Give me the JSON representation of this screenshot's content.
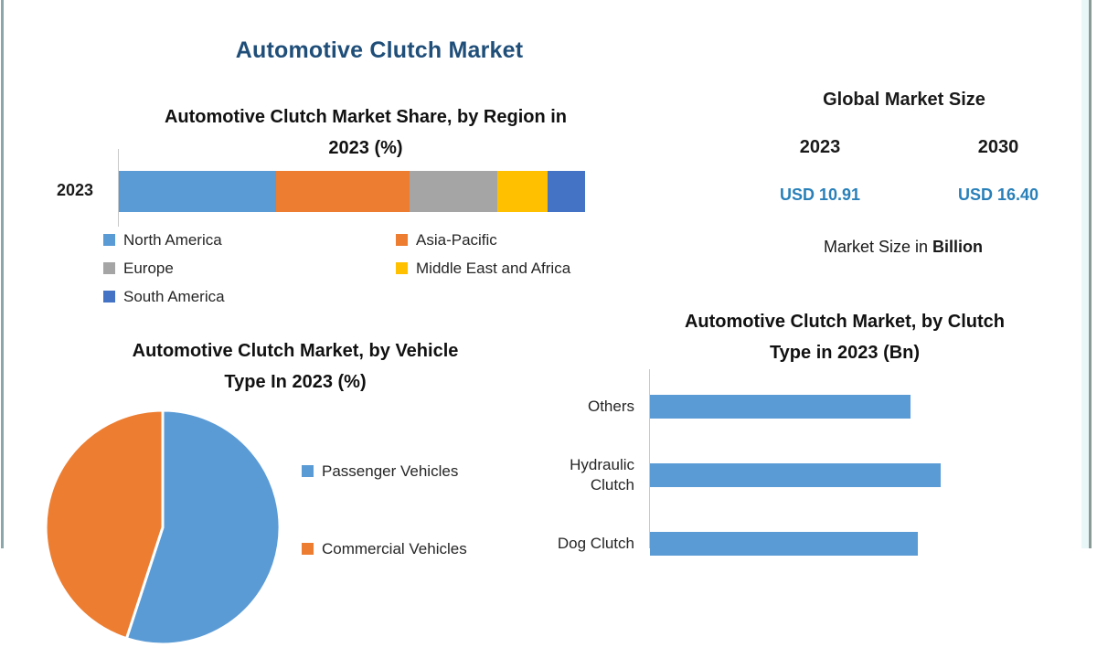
{
  "page": {
    "title": "Automotive Clutch Market",
    "title_color": "#1F4E79",
    "frame_color": "#8ba7a9"
  },
  "chart_data": [
    {
      "id": "region_share",
      "type": "bar",
      "subtype": "stacked-horizontal",
      "title": "Automotive Clutch Market Share, by Region in 2023 (%)",
      "title_lines": [
        "Automotive Clutch Market Share, by Region in",
        "2023 (%)"
      ],
      "categories": [
        "2023"
      ],
      "unit": "%",
      "xlim": [
        0,
        100
      ],
      "grid": false,
      "legend_position": "bottom",
      "series": [
        {
          "name": "North America",
          "values": [
            34
          ],
          "color": "#5B9BD5"
        },
        {
          "name": "Asia-Pacific",
          "values": [
            29
          ],
          "color": "#ED7D31"
        },
        {
          "name": "Europe",
          "values": [
            19
          ],
          "color": "#A5A5A5"
        },
        {
          "name": "Middle East and Africa",
          "values": [
            11
          ],
          "color": "#FFC000"
        },
        {
          "name": "South America",
          "values": [
            8
          ],
          "color": "#4472C4"
        }
      ]
    },
    {
      "id": "vehicle_type",
      "type": "pie",
      "title": "Automotive Clutch Market, by Vehicle Type In 2023 (%)",
      "title_lines": [
        "Automotive Clutch Market, by Vehicle",
        "Type In 2023 (%)"
      ],
      "unit": "%",
      "start_angle_deg": 0,
      "direction": "clockwise",
      "legend_position": "right",
      "slices": [
        {
          "label": "Passenger Vehicles",
          "value": 55,
          "color": "#5B9BD5"
        },
        {
          "label": "Commercial Vehicles",
          "value": 45,
          "color": "#ED7D31"
        }
      ]
    },
    {
      "id": "clutch_type",
      "type": "bar",
      "subtype": "horizontal",
      "title": "Automotive Clutch Market, by Clutch Type in 2023 (Bn)",
      "title_lines": [
        "Automotive Clutch Market, by Clutch",
        "Type in 2023 (Bn)"
      ],
      "unit": "Bn",
      "grid": false,
      "bar_color": "#5B9BD5",
      "categories": [
        "Others",
        "Hydraulic Clutch",
        "Dog Clutch"
      ],
      "values": [
        2.85,
        3.18,
        2.93
      ]
    },
    {
      "id": "global_market_size",
      "type": "table",
      "title": "Global Market Size",
      "columns": [
        "2023",
        "2030"
      ],
      "values": [
        "USD 10.91",
        "USD 16.40"
      ],
      "value_color": "#2980B9",
      "caption_prefix": "Market Size in ",
      "caption_bold": "Billion",
      "unit": "USD Billion"
    }
  ]
}
